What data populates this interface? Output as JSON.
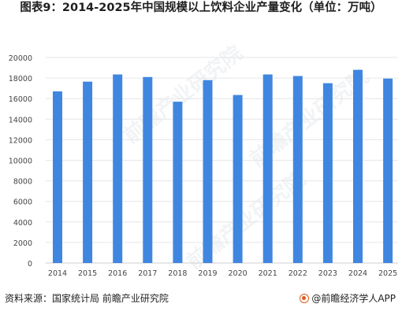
{
  "title": "图表9：2014-2025年中国规模以上饮料企业产量变化（单位：万吨）",
  "footer": {
    "source": "资料来源：国家统计局 前瞻产业研究院",
    "brand": "@前瞻经济学人APP"
  },
  "watermark": "前瞻产业研究院",
  "chart_data": {
    "type": "bar",
    "title": "",
    "categories": [
      "2014",
      "2015",
      "2016",
      "2017",
      "2018",
      "2019",
      "2020",
      "2021",
      "2022",
      "2023",
      "2024",
      "2025"
    ],
    "values": [
      16700,
      17650,
      18350,
      18100,
      15700,
      17800,
      16350,
      18350,
      18200,
      17500,
      18800,
      17950
    ],
    "ylim": [
      0,
      20000
    ],
    "yticks": [
      0,
      2000,
      4000,
      6000,
      8000,
      10000,
      12000,
      14000,
      16000,
      18000,
      20000
    ],
    "grid": true,
    "bar_color": "#3f86e0"
  }
}
